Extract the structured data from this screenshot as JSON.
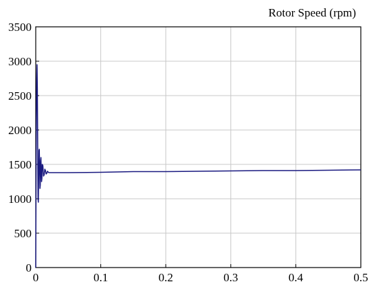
{
  "chart_data": {
    "type": "line",
    "title": "Rotor Speed (rpm)",
    "xlabel": "",
    "ylabel": "",
    "xlim": [
      0,
      0.5
    ],
    "ylim": [
      0,
      3500
    ],
    "grid": true,
    "x_ticks": [
      0,
      0.1,
      0.2,
      0.3,
      0.4,
      0.5
    ],
    "x_tick_labels": [
      "0",
      "0.1",
      "0.2",
      "0.3",
      "0.4",
      "0.5"
    ],
    "y_ticks": [
      0,
      500,
      1000,
      1500,
      2000,
      2500,
      3000,
      3500
    ],
    "y_tick_labels": [
      "0",
      "500",
      "1000",
      "1500",
      "2000",
      "2500",
      "3000",
      "3500"
    ],
    "series": [
      {
        "color": "#1a1a80",
        "x": [
          0,
          0.0005,
          0.001,
          0.0015,
          0.002,
          0.0025,
          0.003,
          0.0035,
          0.004,
          0.0045,
          0.005,
          0.0055,
          0.006,
          0.0065,
          0.007,
          0.0075,
          0.008,
          0.0085,
          0.009,
          0.0095,
          0.01,
          0.011,
          0.012,
          0.013,
          0.014,
          0.015,
          0.016,
          0.017,
          0.018,
          0.019,
          0.02,
          0.025,
          0.05,
          0.1,
          0.15,
          0.2,
          0.25,
          0.3,
          0.35,
          0.4,
          0.45,
          0.5
        ],
        "y": [
          0,
          1200,
          2200,
          2750,
          2950,
          2600,
          1800,
          1000,
          950,
          1300,
          1700,
          1720,
          1450,
          1150,
          1200,
          1550,
          1600,
          1400,
          1250,
          1300,
          1500,
          1480,
          1330,
          1350,
          1430,
          1410,
          1360,
          1370,
          1400,
          1390,
          1380,
          1380,
          1380,
          1385,
          1395,
          1395,
          1400,
          1405,
          1410,
          1410,
          1415,
          1420
        ]
      }
    ]
  }
}
